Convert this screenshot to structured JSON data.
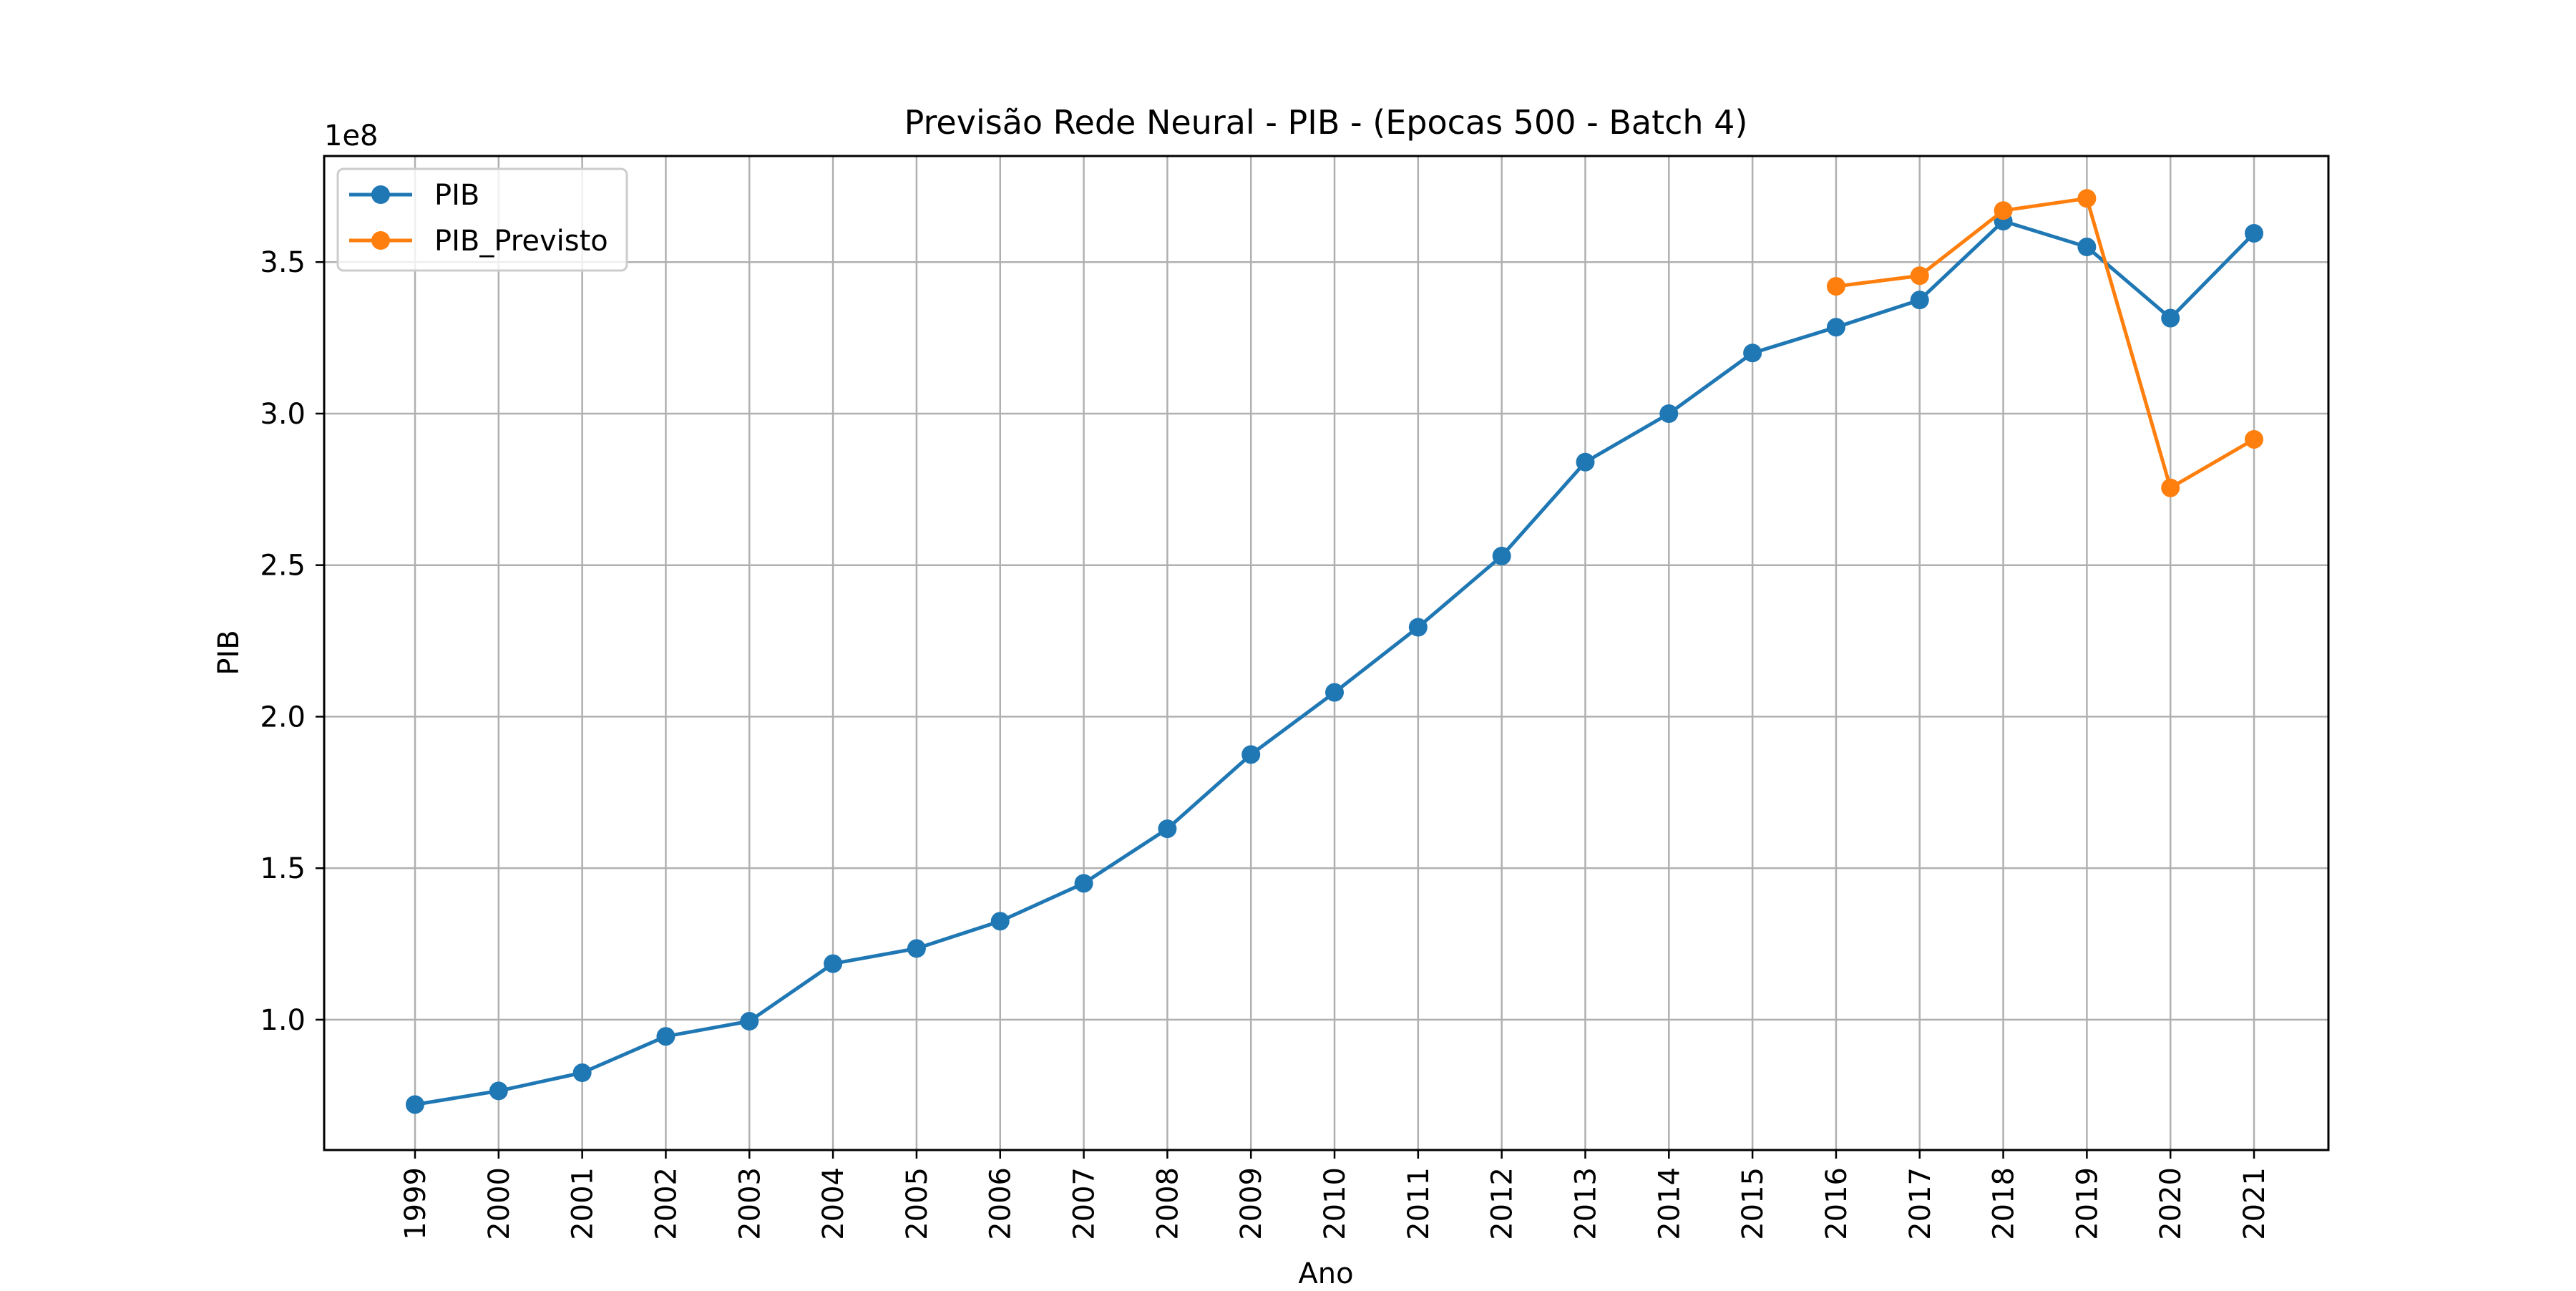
{
  "chart_data": {
    "type": "line",
    "title": "Previsão Rede Neural - PIB - (Epocas 500 - Batch 4)",
    "xlabel": "Ano",
    "ylabel": "PIB",
    "y_offset_label": "1e8",
    "x": [
      "1999",
      "2000",
      "2001",
      "2002",
      "2003",
      "2004",
      "2005",
      "2006",
      "2007",
      "2008",
      "2009",
      "2010",
      "2011",
      "2012",
      "2013",
      "2014",
      "2015",
      "2016",
      "2017",
      "2018",
      "2019",
      "2020",
      "2021"
    ],
    "y_ticks": [
      "1.0",
      "1.5",
      "2.0",
      "2.5",
      "3.0",
      "3.5"
    ],
    "y_tick_values": [
      1.0,
      1.5,
      2.0,
      2.5,
      3.0,
      3.5
    ],
    "ylim": [
      0.57,
      3.85
    ],
    "grid": true,
    "legend_position": "upper left",
    "series": [
      {
        "name": "PIB",
        "color": "#1f77b4",
        "marker": "circle",
        "values": [
          0.72,
          0.765,
          0.825,
          0.945,
          0.995,
          1.185,
          1.235,
          1.325,
          1.45,
          1.63,
          1.875,
          2.08,
          2.295,
          2.53,
          2.84,
          3.0,
          3.2,
          3.285,
          3.375,
          3.635,
          3.55,
          3.315,
          3.595
        ]
      },
      {
        "name": "PIB_Previsto",
        "color": "#ff7f0e",
        "marker": "circle",
        "values": [
          null,
          null,
          null,
          null,
          null,
          null,
          null,
          null,
          null,
          null,
          null,
          null,
          null,
          null,
          null,
          null,
          null,
          3.42,
          3.455,
          3.67,
          3.71,
          2.755,
          2.915
        ]
      }
    ]
  }
}
